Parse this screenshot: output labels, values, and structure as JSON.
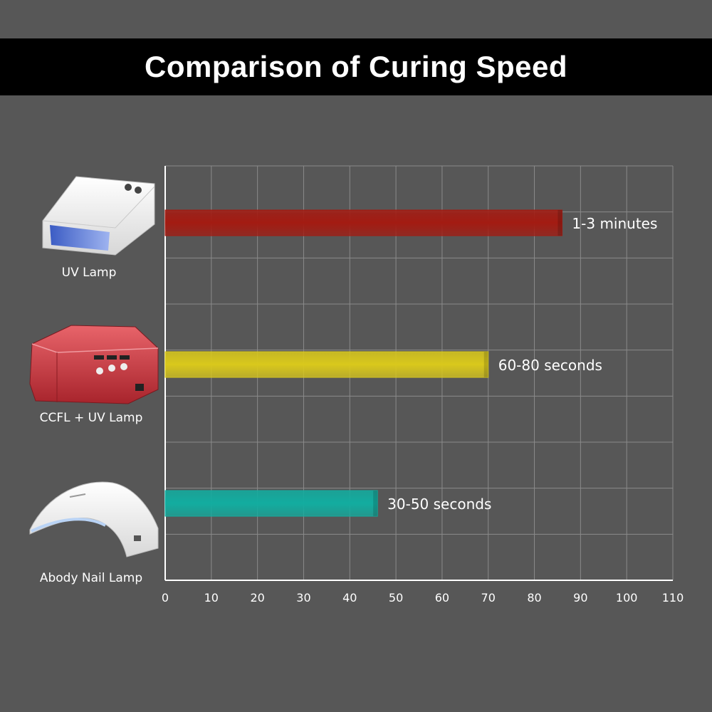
{
  "title": "Comparison of Curing Speed",
  "colors": {
    "background": "#575757",
    "title_bar": "#000000",
    "grid": "#8a8a8a",
    "axis": "#ffffff",
    "text": "#ffffff"
  },
  "chart_data": {
    "type": "bar",
    "orientation": "horizontal",
    "title": "Comparison of Curing Speed",
    "categories": [
      "UV Lamp",
      "CCFL + UV Lamp",
      "Abody Nail Lamp"
    ],
    "values": [
      86,
      70,
      46
    ],
    "data_labels": [
      "1-3 minutes",
      "60-80 seconds",
      "30-50 seconds"
    ],
    "bar_colors": [
      "#a31b12",
      "#d9c81c",
      "#12ada0"
    ],
    "xlim": [
      0,
      110
    ],
    "x_ticks": [
      "0",
      "10",
      "20",
      "30",
      "40",
      "50",
      "60",
      "70",
      "80",
      "90",
      "100",
      "110"
    ],
    "grid": true,
    "legend": "none"
  },
  "category_icons": [
    "uv-lamp-icon",
    "ccfl-uv-lamp-icon",
    "abody-nail-lamp-icon"
  ]
}
